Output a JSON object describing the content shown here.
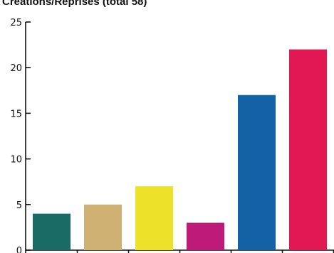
{
  "chart_data": {
    "type": "bar",
    "title": "Creations/Reprises (total 58)",
    "xlabel": "",
    "ylabel": "",
    "ylim": [
      0,
      25
    ],
    "y_ticks": [
      0,
      5,
      10,
      15,
      20,
      25
    ],
    "grid": false,
    "legend": "none",
    "values": [
      4,
      5,
      7,
      3,
      17,
      22
    ],
    "colors": [
      "#1a6b66",
      "#cfb173",
      "#ede229",
      "#bd1a79",
      "#1561a6",
      "#e21854"
    ]
  }
}
